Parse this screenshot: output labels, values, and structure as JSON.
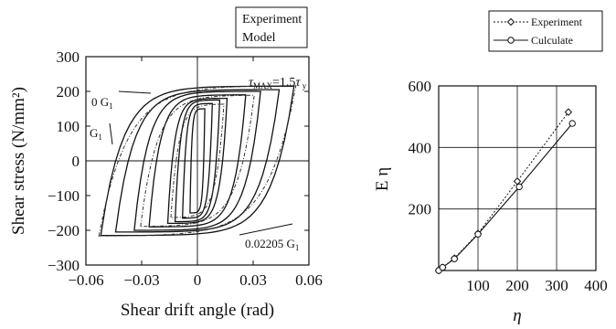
{
  "chart_data": [
    {
      "type": "line",
      "xlabel": "Shear drift angle (rad)",
      "ylabel": "Shear stress (N/mm²)",
      "xlim": [
        -0.06,
        0.06
      ],
      "ylim": [
        -300,
        300
      ],
      "xticks": [
        "−0.06",
        "−0.03",
        "0",
        "0.03",
        "0.06"
      ],
      "yticks": [
        "300",
        "200",
        "100",
        "0",
        "−100",
        "−200",
        "−300"
      ],
      "legend": [
        "Experiment",
        "Model"
      ],
      "legend_position": "top-right-outside",
      "annotations": {
        "tau_max": "τMAX=1.5τ y",
        "slope_upper": "0 G1",
        "slope_mid": "G1",
        "slope_lower": "0.02205 G1"
      },
      "series": [
        {
          "name": "Model",
          "loops": [
            {
              "dmax": 0.004,
              "tau": 150
            },
            {
              "dmax": 0.008,
              "tau": 165
            },
            {
              "dmax": 0.012,
              "tau": 175
            },
            {
              "dmax": 0.016,
              "tau": 180
            },
            {
              "dmax": 0.026,
              "tau": 190
            },
            {
              "dmax": 0.034,
              "tau": 200
            },
            {
              "dmax": 0.044,
              "tau": 205
            },
            {
              "dmax": 0.052,
              "tau": 215
            }
          ]
        },
        {
          "name": "Experiment",
          "loops": [
            {
              "dmax": 0.014,
              "tau": 160
            },
            {
              "dmax": 0.03,
              "tau": 185
            },
            {
              "dmax": 0.052,
              "tau": 212
            }
          ]
        }
      ],
      "grid": false
    },
    {
      "type": "line",
      "xlabel": "η",
      "ylabel": "E η",
      "xlim": [
        0,
        400
      ],
      "ylim": [
        0,
        600
      ],
      "xticks": [
        "100",
        "200",
        "300",
        "400"
      ],
      "yticks": [
        "200",
        "400",
        "600"
      ],
      "grid": true,
      "legend_position": "top",
      "series": [
        {
          "name": "Experiment",
          "style": "dotted-diamond",
          "x": [
            0,
            10,
            40,
            100,
            200,
            330
          ],
          "y": [
            0,
            10,
            40,
            120,
            290,
            515
          ]
        },
        {
          "name": "Culculate",
          "style": "solid-circle",
          "x": [
            0,
            10,
            40,
            100,
            205,
            340
          ],
          "y": [
            0,
            10,
            38,
            118,
            272,
            478
          ]
        }
      ]
    }
  ]
}
